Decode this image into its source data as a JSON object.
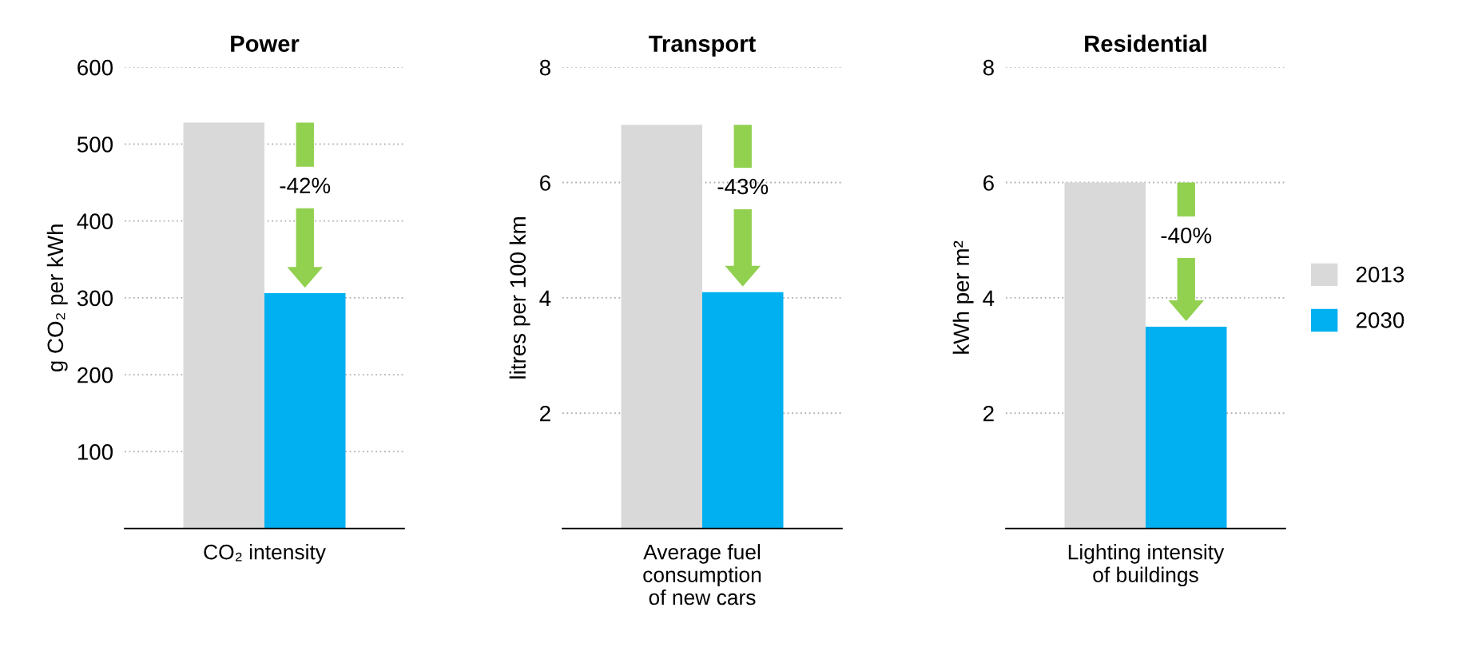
{
  "chart_data": [
    {
      "type": "bar",
      "title": "Power",
      "ylabel": "g CO₂ per kWh",
      "categories": [
        "CO₂ intensity"
      ],
      "series": [
        {
          "color": "#d9d9d9",
          "values": [
            528
          ]
        },
        {
          "color": "#00b0f0",
          "values": [
            306
          ]
        }
      ],
      "ylim": [
        0,
        600
      ],
      "yticks": [
        100,
        200,
        300,
        400,
        500,
        600
      ],
      "grid": "y",
      "legend": false,
      "annotations": [
        "-42%"
      ]
    },
    {
      "type": "bar",
      "title": "Transport",
      "ylabel": "litres per 100 km",
      "categories": [
        "Average fuel\nconsumption\nof new cars"
      ],
      "series": [
        {
          "color": "#d9d9d9",
          "values": [
            7.0
          ]
        },
        {
          "color": "#00b0f0",
          "values": [
            4.1
          ]
        }
      ],
      "ylim": [
        0,
        8
      ],
      "yticks": [
        2,
        4,
        6,
        8
      ],
      "grid": "y",
      "legend": false,
      "annotations": [
        "-43%"
      ]
    },
    {
      "type": "bar",
      "title": "Residential",
      "ylabel": "kWh per m²",
      "categories": [
        "Lighting intensity\nof buildings"
      ],
      "series": [
        {
          "name": "2013",
          "color": "#d9d9d9",
          "values": [
            6.0
          ]
        },
        {
          "name": "2030",
          "color": "#00b0f0",
          "values": [
            3.5
          ]
        }
      ],
      "ylim": [
        0,
        8
      ],
      "yticks": [
        2,
        4,
        6,
        8
      ],
      "grid": "y",
      "legend": "right",
      "annotations": [
        "-40%"
      ]
    }
  ]
}
